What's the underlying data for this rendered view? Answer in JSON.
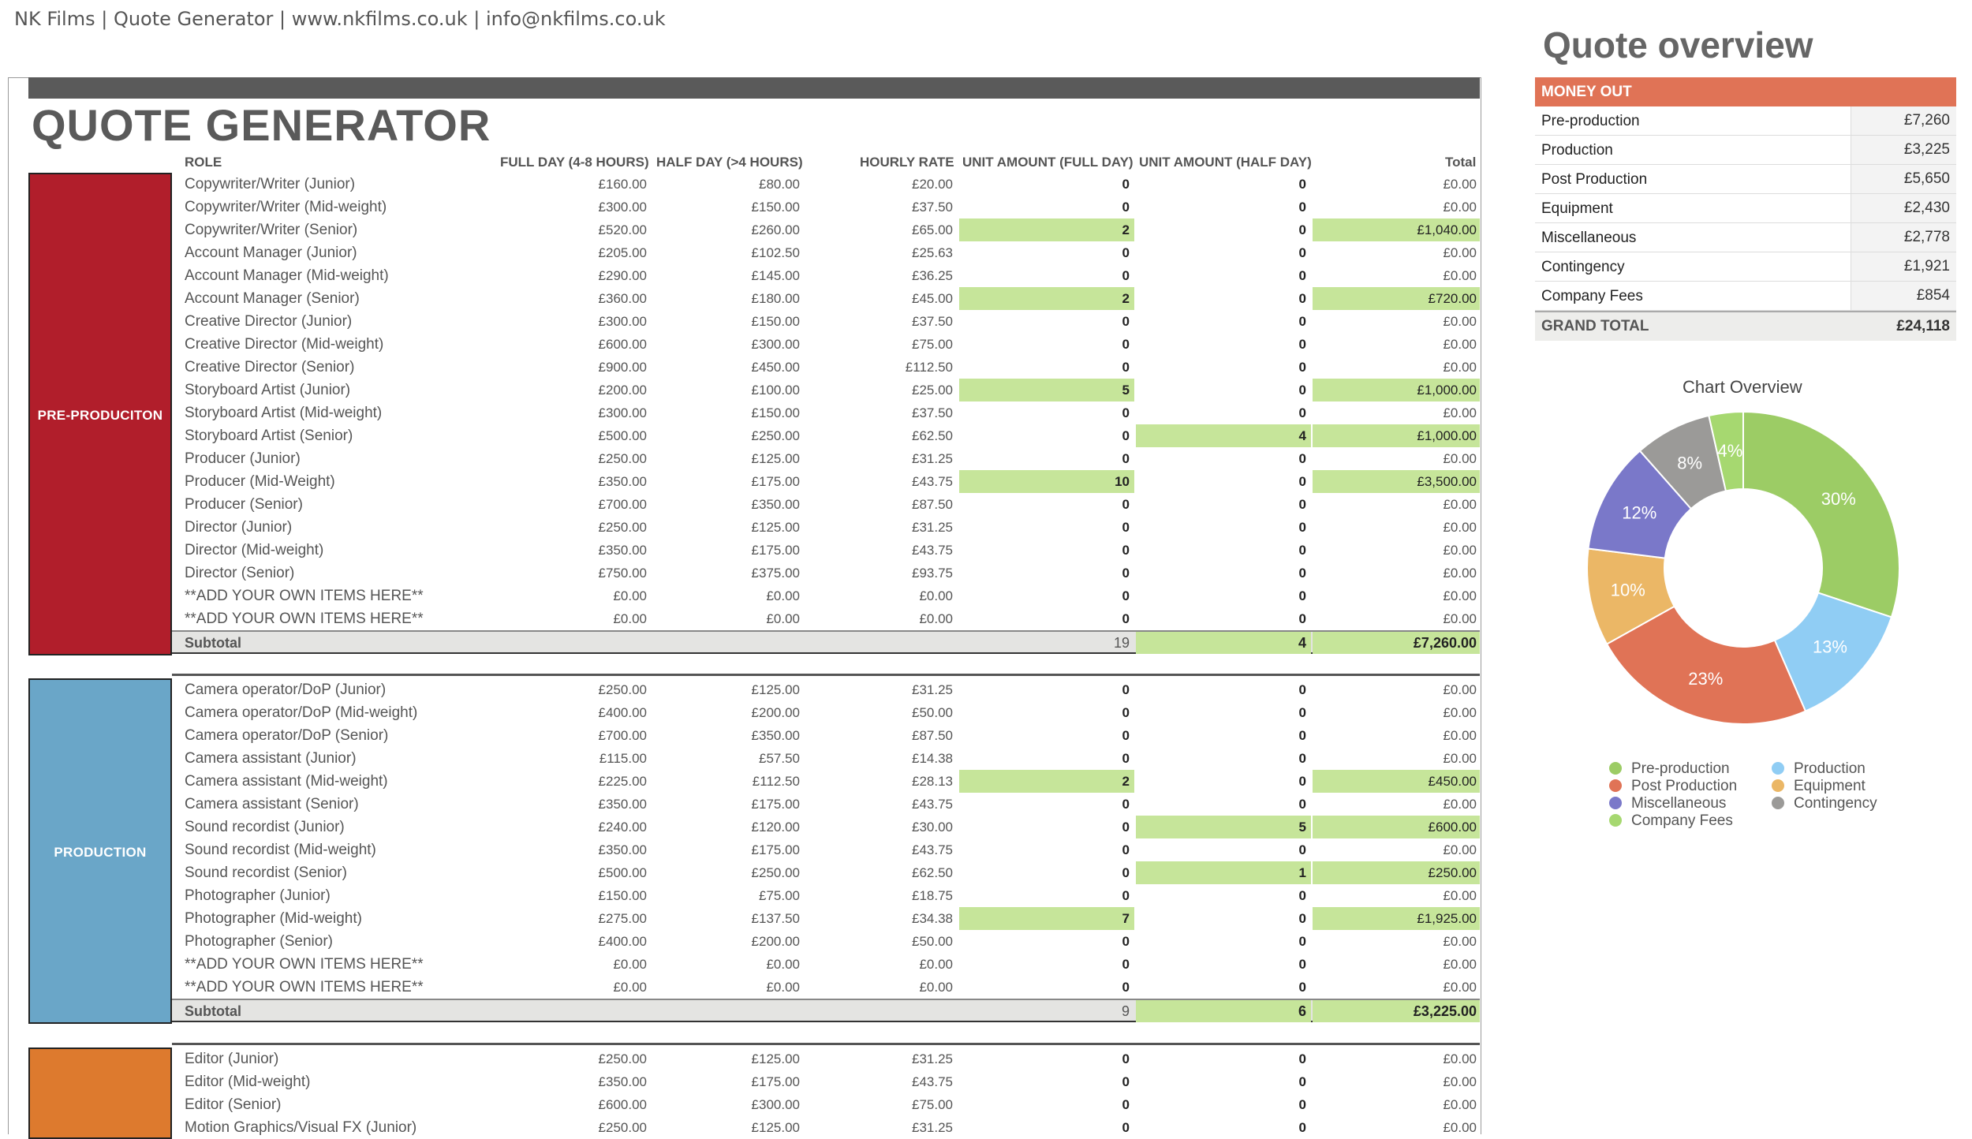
{
  "header": {
    "text": "NK Films | Quote Generator | www.nkfilms.co.uk | info@nkfilms.co.uk"
  },
  "title": "QUOTE GENERATOR",
  "columns": {
    "role": "ROLE",
    "full_day": "FULL DAY (4-8 HOURS)",
    "half_day": "HALF DAY (>4 HOURS)",
    "hourly": "HOURLY RATE",
    "unit_full": "UNIT AMOUNT (FULL DAY)",
    "unit_half": "UNIT AMOUNT (HALF DAY)",
    "total": "Total"
  },
  "sections": [
    {
      "label": "PRE-PRODUCITON",
      "color": "#b11e2b",
      "rows": [
        {
          "role": "Copywriter/Writer (Junior)",
          "full": "£160.00",
          "half": "£80.00",
          "hourly": "£20.00",
          "ufull": "0",
          "uhalf": "0",
          "total": "£0.00"
        },
        {
          "role": "Copywriter/Writer (Mid-weight)",
          "full": "£300.00",
          "half": "£150.00",
          "hourly": "£37.50",
          "ufull": "0",
          "uhalf": "0",
          "total": "£0.00"
        },
        {
          "role": "Copywriter/Writer (Senior)",
          "full": "£520.00",
          "half": "£260.00",
          "hourly": "£65.00",
          "ufull": "2",
          "uhalf": "0",
          "total": "£1,040.00",
          "hlf": true,
          "hlt": true
        },
        {
          "role": "Account Manager (Junior)",
          "full": "£205.00",
          "half": "£102.50",
          "hourly": "£25.63",
          "ufull": "0",
          "uhalf": "0",
          "total": "£0.00"
        },
        {
          "role": "Account Manager (Mid-weight)",
          "full": "£290.00",
          "half": "£145.00",
          "hourly": "£36.25",
          "ufull": "0",
          "uhalf": "0",
          "total": "£0.00"
        },
        {
          "role": "Account Manager (Senior)",
          "full": "£360.00",
          "half": "£180.00",
          "hourly": "£45.00",
          "ufull": "2",
          "uhalf": "0",
          "total": "£720.00",
          "hlf": true,
          "hlt": true
        },
        {
          "role": "Creative Director (Junior)",
          "full": "£300.00",
          "half": "£150.00",
          "hourly": "£37.50",
          "ufull": "0",
          "uhalf": "0",
          "total": "£0.00"
        },
        {
          "role": "Creative Director (Mid-weight)",
          "full": "£600.00",
          "half": "£300.00",
          "hourly": "£75.00",
          "ufull": "0",
          "uhalf": "0",
          "total": "£0.00"
        },
        {
          "role": "Creative Director (Senior)",
          "full": "£900.00",
          "half": "£450.00",
          "hourly": "£112.50",
          "ufull": "0",
          "uhalf": "0",
          "total": "£0.00"
        },
        {
          "role": "Storyboard Artist (Junior)",
          "full": "£200.00",
          "half": "£100.00",
          "hourly": "£25.00",
          "ufull": "5",
          "uhalf": "0",
          "total": "£1,000.00",
          "hlf": true,
          "hlt": true
        },
        {
          "role": "Storyboard Artist (Mid-weight)",
          "full": "£300.00",
          "half": "£150.00",
          "hourly": "£37.50",
          "ufull": "0",
          "uhalf": "0",
          "total": "£0.00"
        },
        {
          "role": "Storyboard Artist (Senior)",
          "full": "£500.00",
          "half": "£250.00",
          "hourly": "£62.50",
          "ufull": "0",
          "uhalf": "4",
          "total": "£1,000.00",
          "hlh": true,
          "hlt": true
        },
        {
          "role": "Producer (Junior)",
          "full": "£250.00",
          "half": "£125.00",
          "hourly": "£31.25",
          "ufull": "0",
          "uhalf": "0",
          "total": "£0.00"
        },
        {
          "role": "Producer (Mid-Weight)",
          "full": "£350.00",
          "half": "£175.00",
          "hourly": "£43.75",
          "ufull": "10",
          "uhalf": "0",
          "total": "£3,500.00",
          "hlf": true,
          "hlt": true
        },
        {
          "role": "Producer (Senior)",
          "full": "£700.00",
          "half": "£350.00",
          "hourly": "£87.50",
          "ufull": "0",
          "uhalf": "0",
          "total": "£0.00"
        },
        {
          "role": "Director (Junior)",
          "full": "£250.00",
          "half": "£125.00",
          "hourly": "£31.25",
          "ufull": "0",
          "uhalf": "0",
          "total": "£0.00"
        },
        {
          "role": "Director (Mid-weight)",
          "full": "£350.00",
          "half": "£175.00",
          "hourly": "£43.75",
          "ufull": "0",
          "uhalf": "0",
          "total": "£0.00"
        },
        {
          "role": "Director (Senior)",
          "full": "£750.00",
          "half": "£375.00",
          "hourly": "£93.75",
          "ufull": "0",
          "uhalf": "0",
          "total": "£0.00"
        },
        {
          "role": "**ADD YOUR OWN ITEMS HERE**",
          "full": "£0.00",
          "half": "£0.00",
          "hourly": "£0.00",
          "ufull": "0",
          "uhalf": "0",
          "total": "£0.00"
        },
        {
          "role": "**ADD YOUR OWN ITEMS HERE**",
          "full": "£0.00",
          "half": "£0.00",
          "hourly": "£0.00",
          "ufull": "0",
          "uhalf": "0",
          "total": "£0.00"
        }
      ],
      "subtotal": {
        "label": "Subtotal",
        "ufull": "19",
        "uhalf": "4",
        "total": "£7,260.00"
      }
    },
    {
      "label": "PRODUCTION",
      "color": "#6aa6c8",
      "rows": [
        {
          "role": "Camera operator/DoP (Junior)",
          "full": "£250.00",
          "half": "£125.00",
          "hourly": "£31.25",
          "ufull": "0",
          "uhalf": "0",
          "total": "£0.00"
        },
        {
          "role": "Camera operator/DoP (Mid-weight)",
          "full": "£400.00",
          "half": "£200.00",
          "hourly": "£50.00",
          "ufull": "0",
          "uhalf": "0",
          "total": "£0.00"
        },
        {
          "role": "Camera operator/DoP (Senior)",
          "full": "£700.00",
          "half": "£350.00",
          "hourly": "£87.50",
          "ufull": "0",
          "uhalf": "0",
          "total": "£0.00"
        },
        {
          "role": "Camera assistant (Junior)",
          "full": "£115.00",
          "half": "£57.50",
          "hourly": "£14.38",
          "ufull": "0",
          "uhalf": "0",
          "total": "£0.00"
        },
        {
          "role": "Camera assistant (Mid-weight)",
          "full": "£225.00",
          "half": "£112.50",
          "hourly": "£28.13",
          "ufull": "2",
          "uhalf": "0",
          "total": "£450.00",
          "hlf": true,
          "hlt": true
        },
        {
          "role": "Camera assistant (Senior)",
          "full": "£350.00",
          "half": "£175.00",
          "hourly": "£43.75",
          "ufull": "0",
          "uhalf": "0",
          "total": "£0.00"
        },
        {
          "role": "Sound recordist (Junior)",
          "full": "£240.00",
          "half": "£120.00",
          "hourly": "£30.00",
          "ufull": "0",
          "uhalf": "5",
          "total": "£600.00",
          "hlh": true,
          "hlt": true
        },
        {
          "role": "Sound recordist (Mid-weight)",
          "full": "£350.00",
          "half": "£175.00",
          "hourly": "£43.75",
          "ufull": "0",
          "uhalf": "0",
          "total": "£0.00"
        },
        {
          "role": "Sound recordist (Senior)",
          "full": "£500.00",
          "half": "£250.00",
          "hourly": "£62.50",
          "ufull": "0",
          "uhalf": "1",
          "total": "£250.00",
          "hlh": true,
          "hlt": true
        },
        {
          "role": "Photographer (Junior)",
          "full": "£150.00",
          "half": "£75.00",
          "hourly": "£18.75",
          "ufull": "0",
          "uhalf": "0",
          "total": "£0.00"
        },
        {
          "role": "Photographer (Mid-weight)",
          "full": "£275.00",
          "half": "£137.50",
          "hourly": "£34.38",
          "ufull": "7",
          "uhalf": "0",
          "total": "£1,925.00",
          "hlf": true,
          "hlt": true
        },
        {
          "role": "Photographer (Senior)",
          "full": "£400.00",
          "half": "£200.00",
          "hourly": "£50.00",
          "ufull": "0",
          "uhalf": "0",
          "total": "£0.00"
        },
        {
          "role": "**ADD YOUR OWN ITEMS HERE**",
          "full": "£0.00",
          "half": "£0.00",
          "hourly": "£0.00",
          "ufull": "0",
          "uhalf": "0",
          "total": "£0.00"
        },
        {
          "role": "**ADD YOUR OWN ITEMS HERE**",
          "full": "£0.00",
          "half": "£0.00",
          "hourly": "£0.00",
          "ufull": "0",
          "uhalf": "0",
          "total": "£0.00"
        }
      ],
      "subtotal": {
        "label": "Subtotal",
        "ufull": "9",
        "uhalf": "6",
        "total": "£3,225.00"
      }
    },
    {
      "label": "",
      "color": "#dd7a2e",
      "rows": [
        {
          "role": "Editor (Junior)",
          "full": "£250.00",
          "half": "£125.00",
          "hourly": "£31.25",
          "ufull": "0",
          "uhalf": "0",
          "total": "£0.00"
        },
        {
          "role": "Editor (Mid-weight)",
          "full": "£350.00",
          "half": "£175.00",
          "hourly": "£43.75",
          "ufull": "0",
          "uhalf": "0",
          "total": "£0.00"
        },
        {
          "role": "Editor (Senior)",
          "full": "£600.00",
          "half": "£300.00",
          "hourly": "£75.00",
          "ufull": "0",
          "uhalf": "0",
          "total": "£0.00"
        },
        {
          "role": "Motion Graphics/Visual FX (Junior)",
          "full": "£250.00",
          "half": "£125.00",
          "hourly": "£31.25",
          "ufull": "0",
          "uhalf": "0",
          "total": "£0.00"
        }
      ]
    }
  ],
  "overview": {
    "title": "Quote overview",
    "header": "MONEY OUT",
    "rows": [
      {
        "label": "Pre-production",
        "value": "£7,260"
      },
      {
        "label": "Production",
        "value": "£3,225"
      },
      {
        "label": "Post Production",
        "value": "£5,650"
      },
      {
        "label": "Equipment",
        "value": "£2,430"
      },
      {
        "label": "Miscellaneous",
        "value": "£2,778"
      },
      {
        "label": "Contingency",
        "value": "£1,921"
      },
      {
        "label": "Company Fees",
        "value": "£854"
      }
    ],
    "grand_total_label": "GRAND TOTAL",
    "grand_total_value": "£24,118"
  },
  "chart_data": {
    "type": "pie",
    "title": "Chart Overview",
    "slices": [
      {
        "name": "Pre-production",
        "value": 7260,
        "label": "30%",
        "color": "#9ccc65"
      },
      {
        "name": "Production",
        "value": 3225,
        "label": "13%",
        "color": "#90cdf4"
      },
      {
        "name": "Post Production",
        "value": 5650,
        "label": "23%",
        "color": "#e07356"
      },
      {
        "name": "Equipment",
        "value": 2430,
        "label": "10%",
        "color": "#ebb766"
      },
      {
        "name": "Miscellaneous",
        "value": 2778,
        "label": "12%",
        "color": "#7a78c9"
      },
      {
        "name": "Contingency",
        "value": 1921,
        "label": "8%",
        "color": "#9b9a98"
      },
      {
        "name": "Company Fees",
        "value": 854,
        "label": "4%",
        "color": "#a6d870"
      }
    ],
    "legend": "bottom"
  }
}
